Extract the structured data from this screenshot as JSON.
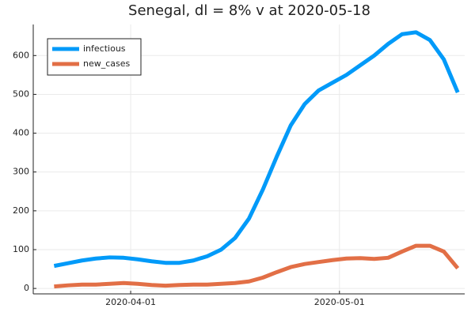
{
  "chart_data": {
    "type": "line",
    "title": "Senegal,  dl = 8% v at 2020-05-18",
    "x": [
      "2020-03-21",
      "2020-03-23",
      "2020-03-25",
      "2020-03-27",
      "2020-03-29",
      "2020-03-31",
      "2020-04-02",
      "2020-04-04",
      "2020-04-06",
      "2020-04-08",
      "2020-04-10",
      "2020-04-12",
      "2020-04-14",
      "2020-04-16",
      "2020-04-18",
      "2020-04-20",
      "2020-04-22",
      "2020-04-24",
      "2020-04-26",
      "2020-04-28",
      "2020-04-30",
      "2020-05-02",
      "2020-05-04",
      "2020-05-06",
      "2020-05-08",
      "2020-05-10",
      "2020-05-12",
      "2020-05-14",
      "2020-05-16",
      "2020-05-18"
    ],
    "series": [
      {
        "name": "infectious",
        "color": "#009af9",
        "values": [
          58,
          65,
          72,
          77,
          80,
          79,
          75,
          70,
          66,
          66,
          72,
          83,
          100,
          130,
          180,
          255,
          340,
          420,
          475,
          510,
          530,
          550,
          575,
          600,
          630,
          655,
          660,
          640,
          590,
          505
        ]
      },
      {
        "name": "new_cases",
        "color": "#e26f46",
        "values": [
          5,
          8,
          10,
          10,
          12,
          14,
          12,
          9,
          7,
          9,
          10,
          10,
          12,
          14,
          18,
          28,
          42,
          55,
          63,
          68,
          73,
          77,
          78,
          76,
          79,
          95,
          110,
          110,
          95,
          52
        ]
      }
    ],
    "xlim": [
      "2020-03-18",
      "2020-05-19"
    ],
    "xticks": [
      "2020-04-01",
      "2020-05-01"
    ],
    "ylim": [
      -14,
      680
    ],
    "yticks": [
      0,
      100,
      200,
      300,
      400,
      500,
      600
    ],
    "grid": true,
    "legend": "top-left"
  }
}
